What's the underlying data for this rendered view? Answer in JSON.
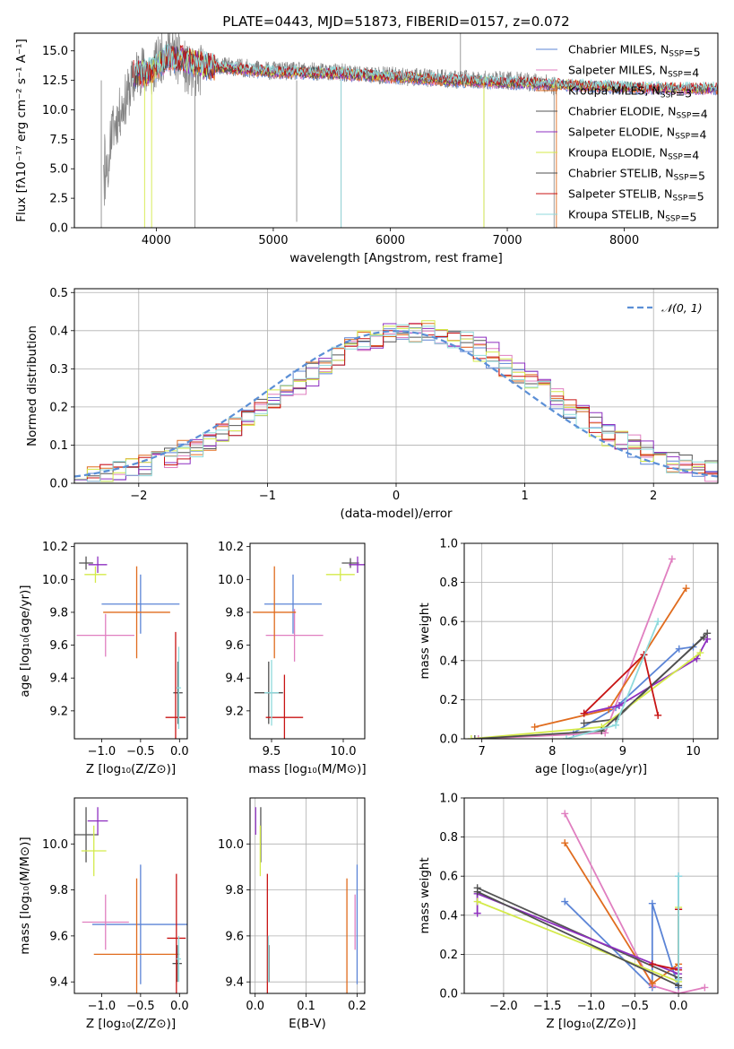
{
  "colors": {
    "chabrier_miles": "#5b84d6",
    "salpeter_miles": "#e07fc0",
    "kroupa_miles": "#e06c1e",
    "chabrier_elodie": "#555555",
    "salpeter_elodie": "#8e2fc0",
    "kroupa_elodie": "#d4ea4a",
    "chabrier_stelib": "#4f4f4f",
    "salpeter_stelib": "#c81414",
    "kroupa_stelib": "#8fdadc",
    "normal_curve": "#5b8fd6",
    "grey_data": "#808080"
  },
  "chart_data": [
    {
      "id": "spectrum",
      "type": "line",
      "title": "PLATE=0443, MJD=51873, FIBERID=0157, z=0.072",
      "xlabel": "wavelength [Angstrom, rest frame]",
      "ylabel": "Flux [fλ10⁻¹⁷ erg cm⁻² s⁻¹ A⁻¹]",
      "xlim": [
        3300,
        8800
      ],
      "ylim": [
        0,
        16.5
      ],
      "xticks": [
        4000,
        5000,
        6000,
        7000,
        8000
      ],
      "yticks": [
        0.0,
        2.5,
        5.0,
        7.5,
        10.0,
        12.5,
        15.0
      ],
      "xtick_labels": [
        "4000",
        "5000",
        "6000",
        "7000",
        "8000"
      ],
      "ytick_labels": [
        "0.0",
        "2.5",
        "5.0",
        "7.5",
        "10.0",
        "12.5",
        "15.0"
      ],
      "grid": false,
      "legend_position": "top-right",
      "legend": [
        {
          "text": "Chabrier MILES, N_SSP=5",
          "color_key": "chabrier_miles"
        },
        {
          "text": "Salpeter MILES, N_SSP=4",
          "color_key": "salpeter_miles"
        },
        {
          "text": "Kroupa MILES, N_SSP=3",
          "color_key": "kroupa_miles"
        },
        {
          "text": "Chabrier ELODIE, N_SSP=4",
          "color_key": "chabrier_elodie"
        },
        {
          "text": "Salpeter ELODIE, N_SSP=4",
          "color_key": "salpeter_elodie"
        },
        {
          "text": "Kroupa ELODIE, N_SSP=4",
          "color_key": "kroupa_elodie"
        },
        {
          "text": "Chabrier STELIB, N_SSP=5",
          "color_key": "chabrier_stelib"
        },
        {
          "text": "Salpeter STELIB, N_SSP=5",
          "color_key": "salpeter_stelib"
        },
        {
          "text": "Kroupa STELIB, N_SSP=5",
          "color_key": "kroupa_stelib"
        }
      ],
      "data_trend": [
        [
          3550,
          6.5
        ],
        [
          3700,
          10.0
        ],
        [
          3850,
          13.5
        ],
        [
          3950,
          13.0
        ],
        [
          4100,
          15.3
        ],
        [
          4300,
          13.0
        ],
        [
          4500,
          13.8
        ],
        [
          4800,
          13.5
        ],
        [
          5000,
          13.3
        ],
        [
          5500,
          13.2
        ],
        [
          6000,
          12.9
        ],
        [
          6500,
          12.6
        ],
        [
          7000,
          12.5
        ],
        [
          7300,
          12.3
        ],
        [
          7400,
          12.0
        ]
      ],
      "model_trend": [
        [
          3800,
          13.0
        ],
        [
          3950,
          13.2
        ],
        [
          4100,
          14.5
        ],
        [
          4500,
          13.6
        ],
        [
          5000,
          13.2
        ],
        [
          5500,
          13.1
        ],
        [
          6000,
          12.8
        ],
        [
          6500,
          12.5
        ],
        [
          7000,
          12.3
        ],
        [
          7500,
          12.1
        ],
        [
          8000,
          11.9
        ],
        [
          8500,
          11.8
        ]
      ]
    },
    {
      "id": "residuals",
      "type": "histogram",
      "xlabel": "(data-model)/error",
      "ylabel": "Normed distribution",
      "xlim": [
        -2.5,
        2.5
      ],
      "ylim": [
        0,
        0.51
      ],
      "xticks": [
        -2,
        -1,
        0,
        1,
        2
      ],
      "yticks": [
        0.0,
        0.1,
        0.2,
        0.3,
        0.4,
        0.5
      ],
      "xtick_labels": [
        "−2",
        "−1",
        "0",
        "1",
        "2"
      ],
      "ytick_labels": [
        "0.0",
        "0.1",
        "0.2",
        "0.3",
        "0.4",
        "0.5"
      ],
      "grid": true,
      "legend_position": "top-right",
      "legend_label": "𝒩(0, 1)",
      "bin_width": 0.1,
      "series": [
        {
          "color_key": "chabrier_miles",
          "offset": 0.004
        },
        {
          "color_key": "salpeter_miles",
          "offset": -0.006
        },
        {
          "color_key": "kroupa_miles",
          "offset": 0.009
        },
        {
          "color_key": "chabrier_elodie",
          "offset": -0.003
        },
        {
          "color_key": "salpeter_elodie",
          "offset": -0.01
        },
        {
          "color_key": "kroupa_elodie",
          "offset": 0.006
        },
        {
          "color_key": "salpeter_stelib",
          "offset": 0.002
        },
        {
          "color_key": "kroupa_stelib",
          "offset": -0.004
        }
      ]
    },
    {
      "id": "age_vs_z",
      "type": "errorbar",
      "xlabel": "Z [log₁₀(Z/Z⊙)]",
      "ylabel": "age  [log₁₀(age/yr)]",
      "xlim": [
        -1.35,
        0.1
      ],
      "ylim": [
        9.03,
        10.22
      ],
      "xticks": [
        -1.0,
        -0.5,
        0.0
      ],
      "yticks": [
        9.2,
        9.4,
        9.6,
        9.8,
        10.0,
        10.2
      ],
      "xtick_labels": [
        "−1.0",
        "−0.5",
        "0.0"
      ],
      "ytick_labels": [
        "9.2",
        "9.4",
        "9.6",
        "9.8",
        "10.0",
        "10.2"
      ],
      "grid": false,
      "points": [
        {
          "x": -0.5,
          "y": 9.85,
          "xerr": 0.5,
          "yerr": 0.18,
          "color_key": "chabrier_miles"
        },
        {
          "x": -0.95,
          "y": 9.66,
          "xerr": 0.37,
          "yerr": 0.13,
          "color_key": "salpeter_miles"
        },
        {
          "x": -0.55,
          "y": 9.8,
          "xerr": 0.43,
          "yerr": 0.28,
          "color_key": "kroupa_miles"
        },
        {
          "x": -1.2,
          "y": 10.1,
          "xerr": 0.09,
          "yerr": 0.04,
          "color_key": "chabrier_elodie"
        },
        {
          "x": -1.05,
          "y": 10.09,
          "xerr": 0.12,
          "yerr": 0.05,
          "color_key": "salpeter_elodie"
        },
        {
          "x": -1.08,
          "y": 10.03,
          "xerr": 0.14,
          "yerr": 0.05,
          "color_key": "kroupa_elodie"
        },
        {
          "x": -0.02,
          "y": 9.31,
          "xerr": 0.06,
          "yerr": 0.19,
          "color_key": "chabrier_stelib"
        },
        {
          "x": -0.05,
          "y": 9.16,
          "xerr": 0.13,
          "yerr": 0.52,
          "color_key": "salpeter_stelib"
        },
        {
          "x": -0.01,
          "y": 9.34,
          "xerr": 0.03,
          "yerr": 0.25,
          "color_key": "kroupa_stelib"
        }
      ]
    },
    {
      "id": "age_vs_mass",
      "type": "errorbar",
      "xlabel": "mass [log₁₀(M/M⊙)]",
      "ylabel": "",
      "xlim": [
        9.35,
        10.15
      ],
      "ylim": [
        9.03,
        10.22
      ],
      "xticks": [
        9.5,
        10.0
      ],
      "yticks": [
        9.2,
        9.4,
        9.6,
        9.8,
        10.0,
        10.2
      ],
      "xtick_labels": [
        "9.5",
        "10.0"
      ],
      "ytick_labels": [
        "9.2",
        "9.4",
        "9.6",
        "9.8",
        "10.0",
        "10.2"
      ],
      "grid": false,
      "points": [
        {
          "x": 9.65,
          "y": 9.85,
          "xerr": 0.2,
          "yerr": 0.18,
          "color_key": "chabrier_miles"
        },
        {
          "x": 9.66,
          "y": 9.66,
          "xerr": 0.2,
          "yerr": 0.16,
          "color_key": "salpeter_miles"
        },
        {
          "x": 9.52,
          "y": 9.8,
          "xerr": 0.15,
          "yerr": 0.28,
          "color_key": "kroupa_miles"
        },
        {
          "x": 10.05,
          "y": 10.1,
          "xerr": 0.06,
          "yerr": 0.03,
          "color_key": "chabrier_elodie"
        },
        {
          "x": 10.1,
          "y": 10.09,
          "xerr": 0.06,
          "yerr": 0.05,
          "color_key": "salpeter_elodie"
        },
        {
          "x": 9.98,
          "y": 10.03,
          "xerr": 0.1,
          "yerr": 0.04,
          "color_key": "kroupa_elodie"
        },
        {
          "x": 9.48,
          "y": 9.31,
          "xerr": 0.1,
          "yerr": 0.19,
          "color_key": "chabrier_stelib"
        },
        {
          "x": 9.59,
          "y": 9.16,
          "xerr": 0.13,
          "yerr": 0.26,
          "color_key": "salpeter_stelib"
        },
        {
          "x": 9.5,
          "y": 9.31,
          "xerr": 0.05,
          "yerr": 0.2,
          "color_key": "kroupa_stelib"
        }
      ]
    },
    {
      "id": "mass_weight_vs_age",
      "type": "line",
      "xlabel": "age  [log₁₀(age/yr)]",
      "ylabel": "mass weight",
      "xlim": [
        6.75,
        10.35
      ],
      "ylim": [
        0,
        1.0
      ],
      "xticks": [
        7,
        8,
        9,
        10
      ],
      "yticks": [
        0.0,
        0.2,
        0.4,
        0.6,
        0.8,
        1.0
      ],
      "xtick_labels": [
        "7",
        "8",
        "9",
        "10"
      ],
      "ytick_labels": [
        "0.0",
        "0.2",
        "0.4",
        "0.6",
        "0.8",
        "1.0"
      ],
      "grid": true,
      "series": [
        {
          "color_key": "chabrier_miles",
          "x": [
            8.3,
            8.9,
            9.8,
            10.0
          ],
          "y": [
            0.03,
            0.16,
            0.46,
            0.47
          ]
        },
        {
          "color_key": "salpeter_miles",
          "x": [
            6.95,
            8.75,
            9.7
          ],
          "y": [
            0.0,
            0.03,
            0.92
          ]
        },
        {
          "color_key": "kroupa_miles",
          "x": [
            7.75,
            8.8,
            9.9
          ],
          "y": [
            0.06,
            0.15,
            0.77
          ]
        },
        {
          "color_key": "chabrier_elodie",
          "x": [
            8.45,
            8.9,
            10.2
          ],
          "y": [
            0.08,
            0.1,
            0.54
          ]
        },
        {
          "color_key": "salpeter_elodie",
          "x": [
            8.45,
            8.95,
            10.05,
            10.2
          ],
          "y": [
            0.13,
            0.17,
            0.41,
            0.51
          ]
        },
        {
          "color_key": "kroupa_elodie",
          "x": [
            6.85,
            8.7,
            10.1
          ],
          "y": [
            0.0,
            0.06,
            0.44
          ]
        },
        {
          "color_key": "chabrier_stelib",
          "x": [
            6.9,
            8.7,
            10.15
          ],
          "y": [
            0.0,
            0.04,
            0.52
          ]
        },
        {
          "color_key": "salpeter_stelib",
          "x": [
            8.45,
            9.3,
            9.5
          ],
          "y": [
            0.13,
            0.43,
            0.12
          ]
        },
        {
          "color_key": "kroupa_stelib",
          "x": [
            8.2,
            8.9,
            9.5
          ],
          "y": [
            0.0,
            0.07,
            0.6
          ]
        }
      ]
    },
    {
      "id": "mass_vs_z",
      "type": "errorbar",
      "xlabel": "Z [log₁₀(Z/Z⊙)]",
      "ylabel": "mass [log₁₀(M/M⊙)]",
      "xlim": [
        -1.35,
        0.1
      ],
      "ylim": [
        9.35,
        10.2
      ],
      "xticks": [
        -1.0,
        -0.5,
        0.0
      ],
      "yticks": [
        9.4,
        9.6,
        9.8,
        10.0
      ],
      "xtick_labels": [
        "−1.0",
        "−0.5",
        "0.0"
      ],
      "ytick_labels": [
        "9.4",
        "9.6",
        "9.8",
        "10.0"
      ],
      "grid": false,
      "points": [
        {
          "x": -0.5,
          "y": 9.65,
          "xerr": 0.62,
          "yerr": 0.26,
          "color_key": "chabrier_miles"
        },
        {
          "x": -0.95,
          "y": 9.66,
          "xerr": 0.3,
          "yerr": 0.12,
          "color_key": "salpeter_miles"
        },
        {
          "x": -0.55,
          "y": 9.52,
          "xerr": 0.55,
          "yerr": 0.33,
          "color_key": "kroupa_miles"
        },
        {
          "x": -1.2,
          "y": 10.04,
          "xerr": 0.16,
          "yerr": 0.12,
          "color_key": "chabrier_elodie"
        },
        {
          "x": -1.05,
          "y": 10.1,
          "xerr": 0.13,
          "yerr": 0.06,
          "color_key": "salpeter_elodie"
        },
        {
          "x": -1.1,
          "y": 9.97,
          "xerr": 0.16,
          "yerr": 0.11,
          "color_key": "kroupa_elodie"
        },
        {
          "x": -0.03,
          "y": 9.48,
          "xerr": 0.06,
          "yerr": 0.08,
          "color_key": "chabrier_stelib"
        },
        {
          "x": -0.04,
          "y": 9.59,
          "xerr": 0.12,
          "yerr": 0.28,
          "color_key": "salpeter_stelib"
        },
        {
          "x": -0.01,
          "y": 9.5,
          "xerr": 0.03,
          "yerr": 0.1,
          "color_key": "kroupa_stelib"
        }
      ]
    },
    {
      "id": "mass_vs_ebv",
      "type": "errorbar",
      "xlabel": "E(B-V)",
      "ylabel": "",
      "xlim": [
        -0.01,
        0.215
      ],
      "ylim": [
        9.35,
        10.2
      ],
      "xticks": [
        0.0,
        0.1,
        0.2
      ],
      "yticks": [
        9.4,
        9.6,
        9.8,
        10.0
      ],
      "xtick_labels": [
        "0.0",
        "0.1",
        "0.2"
      ],
      "ytick_labels": [
        "9.4",
        "9.6",
        "9.8",
        "10.0"
      ],
      "grid": true,
      "points": [
        {
          "x": 0.2,
          "y": 9.65,
          "xerr": 0,
          "yerr": 0.26,
          "color_key": "chabrier_miles"
        },
        {
          "x": 0.196,
          "y": 9.66,
          "xerr": 0,
          "yerr": 0.12,
          "color_key": "salpeter_miles"
        },
        {
          "x": 0.18,
          "y": 9.52,
          "xerr": 0,
          "yerr": 0.33,
          "color_key": "kroupa_miles"
        },
        {
          "x": 0.011,
          "y": 10.04,
          "xerr": 0,
          "yerr": 0.12,
          "color_key": "chabrier_elodie"
        },
        {
          "x": 0.001,
          "y": 10.1,
          "xerr": 0,
          "yerr": 0.06,
          "color_key": "salpeter_elodie"
        },
        {
          "x": 0.01,
          "y": 9.97,
          "xerr": 0,
          "yerr": 0.11,
          "color_key": "kroupa_elodie"
        },
        {
          "x": 0.027,
          "y": 9.48,
          "xerr": 0,
          "yerr": 0.08,
          "color_key": "chabrier_stelib"
        },
        {
          "x": 0.024,
          "y": 9.59,
          "xerr": 0,
          "yerr": 0.28,
          "color_key": "salpeter_stelib"
        },
        {
          "x": 0.026,
          "y": 9.5,
          "xerr": 0,
          "yerr": 0.1,
          "color_key": "kroupa_stelib"
        }
      ]
    },
    {
      "id": "mass_weight_vs_z",
      "type": "line",
      "xlabel": "Z [log₁₀(Z/Z⊙)]",
      "ylabel": "mass weight",
      "xlim": [
        -2.45,
        0.45
      ],
      "ylim": [
        0,
        1.0
      ],
      "xticks": [
        -2.0,
        -1.5,
        -1.0,
        -0.5,
        0.0
      ],
      "yticks": [
        0.0,
        0.2,
        0.4,
        0.6,
        0.8,
        1.0
      ],
      "xtick_labels": [
        "−2.0",
        "−1.5",
        "−1.0",
        "−0.5",
        "0.0"
      ],
      "ytick_labels": [
        "0.0",
        "0.2",
        "0.4",
        "0.6",
        "0.8",
        "1.0"
      ],
      "grid": true,
      "series": [
        {
          "color_key": "chabrier_miles",
          "x": [
            -1.3,
            -0.3,
            -0.3,
            0.0,
            0.0
          ],
          "y": [
            0.47,
            0.03,
            0.46,
            0.03,
            0.6
          ]
        },
        {
          "color_key": "salpeter_miles",
          "x": [
            -1.3,
            -0.3,
            0.0,
            0.3
          ],
          "y": [
            0.92,
            0.04,
            0.0,
            0.03
          ]
        },
        {
          "color_key": "kroupa_miles",
          "x": [
            -1.3,
            -0.3,
            0.0
          ],
          "y": [
            0.77,
            0.05,
            0.15
          ]
        },
        {
          "color_key": "chabrier_elodie",
          "x": [
            -2.3,
            0.0,
            0.0
          ],
          "y": [
            0.54,
            0.08,
            0.43
          ]
        },
        {
          "color_key": "salpeter_elodie",
          "x": [
            -2.3,
            -2.3,
            0.0,
            0.0
          ],
          "y": [
            0.41,
            0.51,
            0.1,
            0.13
          ]
        },
        {
          "color_key": "kroupa_elodie",
          "x": [
            -2.3,
            0.0,
            0.0
          ],
          "y": [
            0.47,
            0.06,
            0.44
          ]
        },
        {
          "color_key": "chabrier_stelib",
          "x": [
            -2.3,
            0.0
          ],
          "y": [
            0.52,
            0.04
          ]
        },
        {
          "color_key": "salpeter_stelib",
          "x": [
            -0.3,
            0.0,
            0.0
          ],
          "y": [
            0.15,
            0.12,
            0.43
          ]
        },
        {
          "color_key": "kroupa_stelib",
          "x": [
            0.0,
            0.0
          ],
          "y": [
            0.07,
            0.6
          ]
        }
      ]
    }
  ]
}
